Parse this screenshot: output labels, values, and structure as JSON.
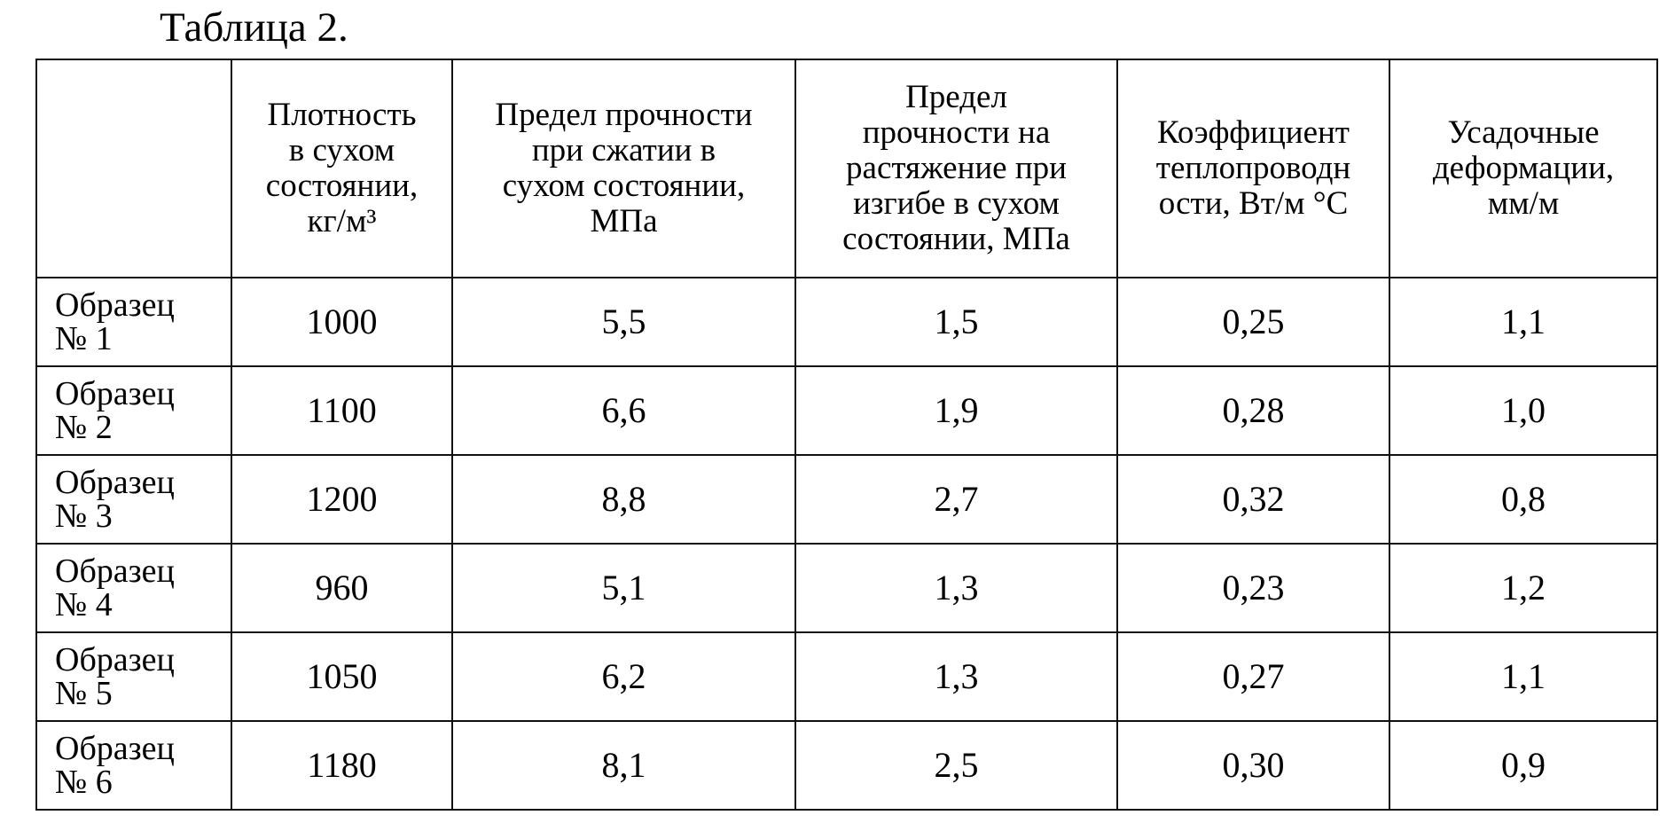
{
  "header": {
    "title": "Таблица 2."
  },
  "table": {
    "columns": [
      [],
      [
        "Плотность",
        "в сухом",
        "состоянии,",
        "кг/м³"
      ],
      [
        "Предел прочности",
        "при сжатии в",
        "сухом состоянии,",
        "МПа"
      ],
      [
        "Предел",
        "прочности на",
        "растяжение при",
        "изгибе в сухом",
        "состоянии, МПа"
      ],
      [
        "Коэффициент",
        "теплопроводн",
        "ости, Вт/м °С"
      ],
      [
        "Усадочные",
        "деформации,",
        "мм/м"
      ]
    ],
    "rows": [
      [
        [
          "Образец",
          "№ 1"
        ],
        "1000",
        "5,5",
        "1,5",
        "0,25",
        "1,1"
      ],
      [
        [
          "Образец",
          "№ 2"
        ],
        "1100",
        "6,6",
        "1,9",
        "0,28",
        "1,0"
      ],
      [
        [
          "Образец",
          "№ 3"
        ],
        "1200",
        "8,8",
        "2,7",
        "0,32",
        "0,8"
      ],
      [
        [
          "Образец",
          "№ 4"
        ],
        "960",
        "5,1",
        "1,3",
        "0,23",
        "1,2"
      ],
      [
        [
          "Образец",
          "№ 5"
        ],
        "1050",
        "6,2",
        "1,3",
        "0,27",
        "1,1"
      ],
      [
        [
          "Образец",
          "№ 6"
        ],
        "1180",
        "8,1",
        "2,5",
        "0,30",
        "0,9"
      ]
    ]
  }
}
